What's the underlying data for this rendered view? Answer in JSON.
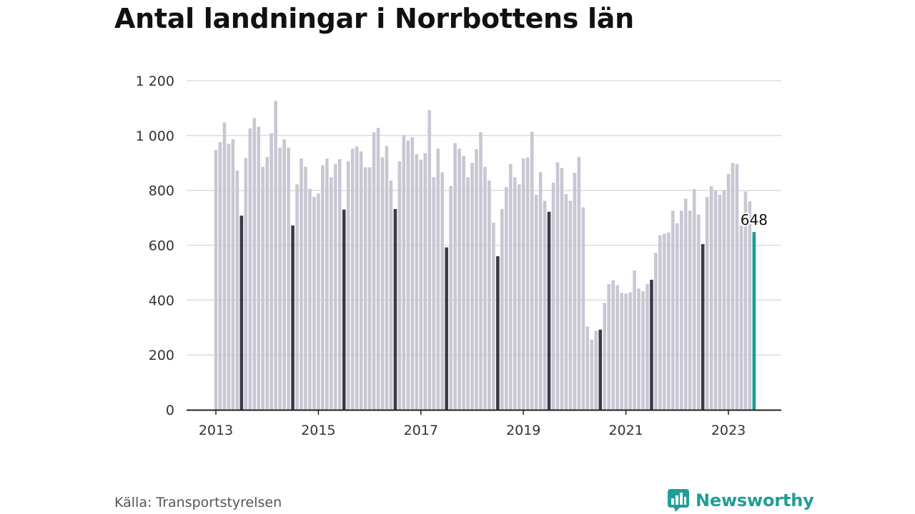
{
  "title": "Antal landningar i Norrbottens län",
  "source": "Källa: Transportstyrelsen",
  "brand": {
    "name": "Newsworthy",
    "icon": "newsworthy-logo-icon"
  },
  "colors": {
    "bar": "#c8c7d3",
    "highlight_july": "#3b3a4a",
    "latest": "#159e96",
    "grid": "#d9d9d9",
    "axis": "#222222"
  },
  "chart_data": {
    "type": "bar",
    "title": "Antal landningar i Norrbottens län",
    "xlabel": "",
    "ylabel": "",
    "ylim": [
      0,
      1200
    ],
    "y_ticks": [
      0,
      200,
      400,
      600,
      800,
      1000,
      1200
    ],
    "y_tick_labels": [
      "0",
      "200",
      "400",
      "600",
      "800",
      "1 000",
      "1 200"
    ],
    "x_tick_labels": [
      "2013",
      "2015",
      "2017",
      "2019",
      "2021",
      "2023"
    ],
    "grid": true,
    "start": "2013-01",
    "end": "2023-07",
    "highlight": "July of each year shown darker; latest month shown in teal",
    "latest_label": "648",
    "values": [
      948,
      976,
      1048,
      970,
      986,
      872,
      708,
      918,
      1026,
      1064,
      1032,
      886,
      922,
      1008,
      1126,
      956,
      986,
      956,
      672,
      822,
      916,
      886,
      806,
      776,
      788,
      892,
      916,
      848,
      896,
      914,
      730,
      906,
      952,
      960,
      942,
      884,
      884,
      1012,
      1028,
      920,
      962,
      836,
      732,
      906,
      1002,
      982,
      994,
      932,
      912,
      936,
      1092,
      848,
      952,
      866,
      592,
      816,
      972,
      952,
      926,
      848,
      900,
      950,
      1012,
      886,
      836,
      682,
      560,
      732,
      812,
      896,
      848,
      822,
      916,
      920,
      1014,
      784,
      866,
      762,
      722,
      828,
      902,
      882,
      786,
      762,
      864,
      922,
      738,
      304,
      256,
      288,
      292,
      390,
      458,
      472,
      454,
      426,
      424,
      428,
      508,
      442,
      432,
      458,
      474,
      572,
      636,
      642,
      646,
      726,
      680,
      726,
      770,
      726,
      804,
      712,
      604,
      776,
      816,
      800,
      784,
      800,
      860,
      900,
      896,
      672,
      796,
      760,
      648
    ]
  }
}
